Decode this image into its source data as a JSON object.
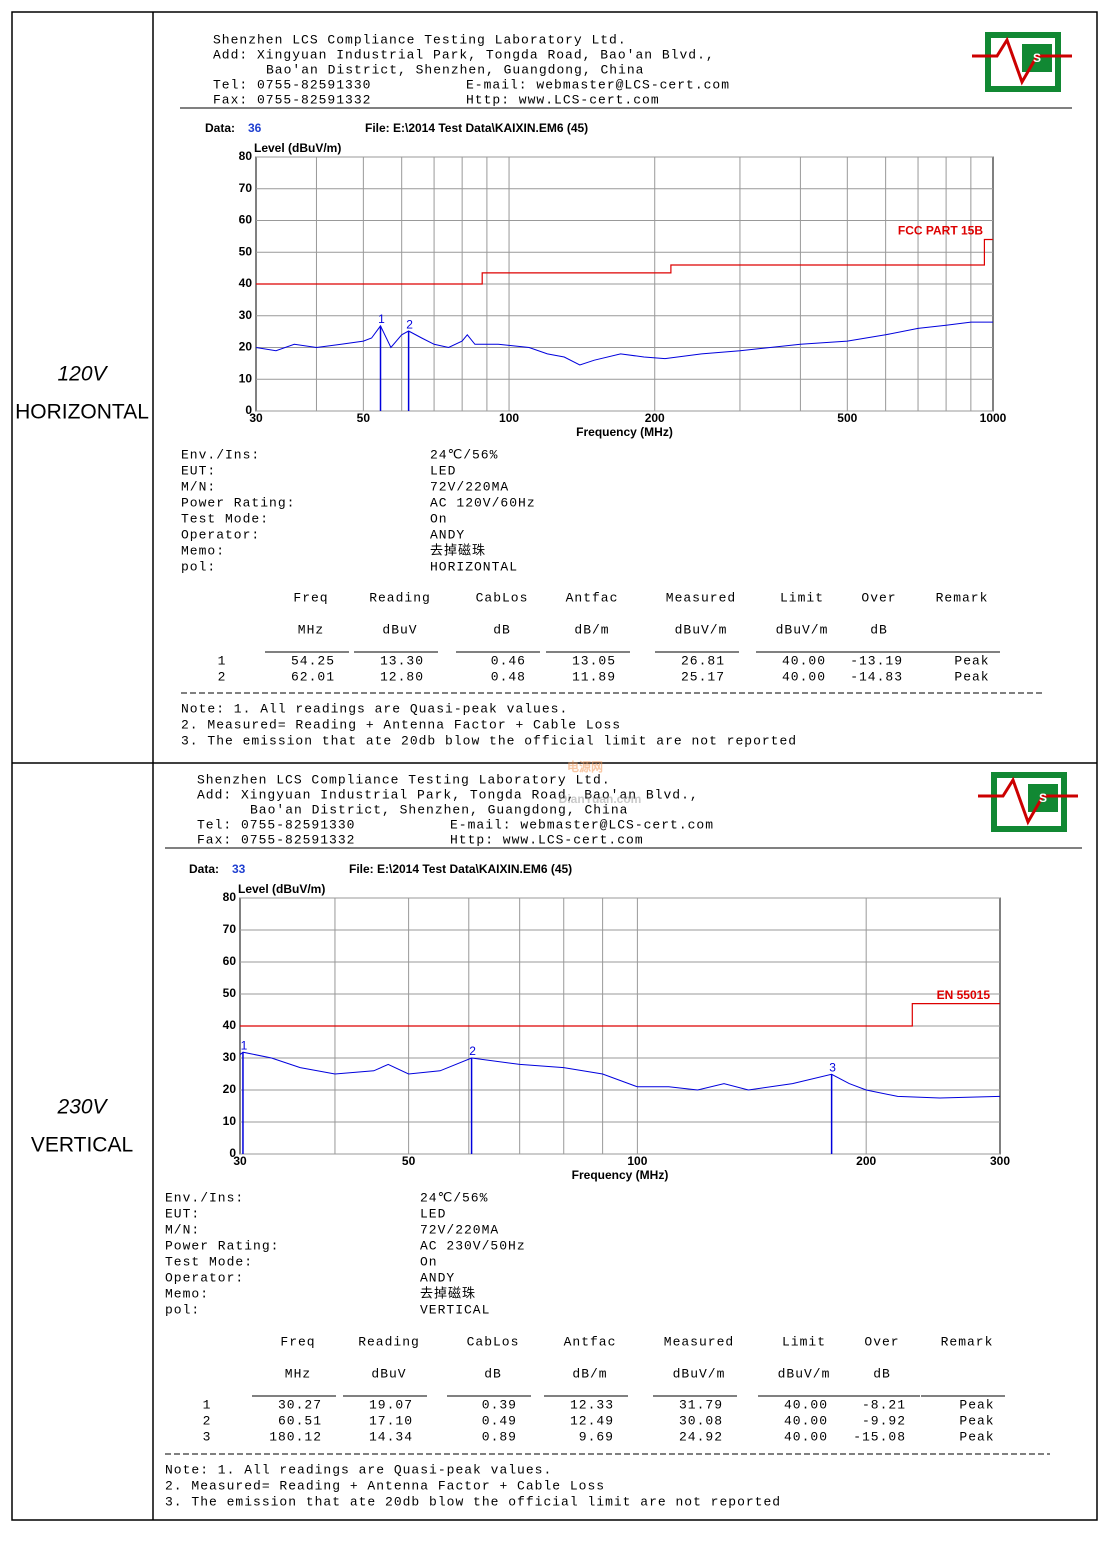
{
  "watermark": [
    "电源网",
    "DianYuan.com"
  ],
  "sections": [
    {
      "label": [
        "120V",
        "HORIZONTAL"
      ],
      "header": {
        "company": "Shenzhen LCS Compliance Testing Laboratory Ltd.",
        "address": [
          "Add: Xingyuan Industrial Park, Tongda Road, Bao'an Blvd.,",
          "Bao'an District, Shenzhen, Guangdong, China"
        ],
        "tel": "Tel: 0755-82591330",
        "email": "E-mail: webmaster@LCS-cert.com",
        "fax": "Fax: 0755-82591332",
        "http": "Http: www.LCS-cert.com"
      },
      "logo": "S",
      "data_label": "Data:",
      "data_no": "36",
      "file": "File: E:\\2014 Test Data\\KAIXIN.EM6  (45)",
      "chart_data": {
        "type": "line",
        "y_label": "Level (dBuV/m)",
        "x_label": "Frequency (MHz)",
        "xscale": "log",
        "xlim": [
          30,
          1000
        ],
        "ylim": [
          0,
          80
        ],
        "yticks": [
          0,
          10,
          20,
          30,
          40,
          50,
          60,
          70,
          80
        ],
        "xticks": [
          30,
          50,
          100,
          200,
          500,
          1000
        ],
        "xgrid": [
          40,
          50,
          60,
          70,
          80,
          90,
          100,
          200,
          300,
          400,
          500,
          600,
          700,
          800,
          900
        ],
        "grid": true,
        "series": [
          {
            "name": "FCC PART 15B",
            "color": "#dd0000",
            "x": [
              30,
              88,
              88,
              216,
              216,
              960,
              960,
              1000
            ],
            "values": [
              40,
              40,
              43.5,
              43.5,
              46,
              46,
              54,
              54
            ]
          },
          {
            "color": "#0000dd",
            "x": [
              30,
              33,
              36,
              40,
              45,
              50,
              52,
              54.25,
              57,
              60,
              62,
              66,
              70,
              75,
              80,
              82,
              85,
              95,
              110,
              120,
              130,
              140,
              150,
              170,
              190,
              210,
              250,
              300,
              400,
              500,
              600,
              700,
              800,
              900,
              1000
            ],
            "values": [
              20,
              19,
              21,
              20,
              21,
              22,
              23,
              26.8,
              20,
              24,
              25.2,
              23,
              21,
              20,
              22,
              24,
              21,
              21,
              20,
              18,
              17,
              14.5,
              16,
              18,
              17,
              16.5,
              18,
              19,
              21,
              22,
              24,
              26,
              27,
              28,
              28
            ]
          }
        ],
        "markers": [
          {
            "label": "1",
            "x": 54.25,
            "value": 26.81
          },
          {
            "label": "2",
            "x": 62.01,
            "value": 25.17
          }
        ]
      },
      "info": [
        [
          "Env./Ins:",
          "24℃/56%"
        ],
        [
          "EUT:",
          "LED"
        ],
        [
          "M/N:",
          "72V/220MA"
        ],
        [
          "Power Rating:",
          "AC 120V/60Hz"
        ],
        [
          "Test Mode:",
          "On"
        ],
        [
          "Operator:",
          "ANDY"
        ],
        [
          "Memo:",
          "去掉磁珠"
        ],
        [
          "pol:",
          "HORIZONTAL"
        ]
      ],
      "table": {
        "columns": [
          "Freq",
          "Reading",
          "CabLos",
          "Antfac",
          "Measured",
          "Limit",
          "Over",
          "Remark"
        ],
        "units": [
          "MHz",
          "dBuV",
          "dB",
          "dB/m",
          "dBuV/m",
          "dBuV/m",
          "dB"
        ],
        "rows": [
          [
            "1",
            "54.25",
            "13.30",
            "0.46",
            "13.05",
            "26.81",
            "40.00",
            "-13.19",
            "Peak"
          ],
          [
            "2",
            "62.01",
            "12.80",
            "0.48",
            "11.89",
            "25.17",
            "40.00",
            "-14.83",
            "Peak"
          ]
        ]
      },
      "notes": [
        "Note: 1. All readings are Quasi-peak values.",
        "2. Measured= Reading + Antenna Factor + Cable Loss",
        "3. The emission that ate 20db blow the official limit are not reported"
      ]
    },
    {
      "label": [
        "230V",
        "VERTICAL"
      ],
      "header": {
        "company": "Shenzhen LCS Compliance Testing Laboratory Ltd.",
        "address": [
          "Add: Xingyuan Industrial Park, Tongda Road, Bao'an Blvd.,",
          "Bao'an District, Shenzhen, Guangdong, China"
        ],
        "tel": "Tel: 0755-82591330",
        "email": "E-mail: webmaster@LCS-cert.com",
        "fax": "Fax: 0755-82591332",
        "http": "Http: www.LCS-cert.com"
      },
      "logo": "S",
      "data_label": "Data:",
      "data_no": "33",
      "file": "File: E:\\2014 Test Data\\KAIXIN.EM6  (45)",
      "chart_data": {
        "type": "line",
        "y_label": "Level (dBuV/m)",
        "x_label": "Frequency (MHz)",
        "xscale": "log",
        "xlim": [
          30,
          300
        ],
        "ylim": [
          0,
          80
        ],
        "yticks": [
          0,
          10,
          20,
          30,
          40,
          50,
          60,
          70,
          80
        ],
        "xticks": [
          30,
          50,
          100,
          200,
          300
        ],
        "xgrid": [
          40,
          50,
          60,
          70,
          80,
          90,
          100,
          200
        ],
        "grid": true,
        "series": [
          {
            "name": "EN 55015",
            "color": "#dd0000",
            "x": [
              30,
              230,
              230,
              300
            ],
            "values": [
              40,
              40,
              47,
              47
            ]
          },
          {
            "color": "#0000dd",
            "x": [
              30,
              30.27,
              33,
              36,
              40,
              45,
              47,
              50,
              55,
              60.51,
              70,
              80,
              90,
              100,
              110,
              120,
              130,
              140,
              160,
              180.12,
              190,
              200,
              220,
              250,
              300
            ],
            "values": [
              31,
              31.8,
              30,
              27,
              25,
              26,
              28,
              25,
              26,
              30,
              28,
              27,
              25,
              21,
              21,
              20,
              22,
              20,
              22,
              24.9,
              22,
              20,
              18,
              17.5,
              18
            ]
          }
        ],
        "markers": [
          {
            "label": "1",
            "x": 30.27,
            "value": 31.79
          },
          {
            "label": "2",
            "x": 60.51,
            "value": 30.08
          },
          {
            "label": "3",
            "x": 180.12,
            "value": 24.92
          }
        ]
      },
      "info": [
        [
          "Env./Ins:",
          "24℃/56%"
        ],
        [
          "EUT:",
          "LED"
        ],
        [
          "M/N:",
          "72V/220MA"
        ],
        [
          "Power Rating:",
          "AC 230V/50Hz"
        ],
        [
          "Test Mode:",
          "On"
        ],
        [
          "Operator:",
          "ANDY"
        ],
        [
          "Memo:",
          "去掉磁珠"
        ],
        [
          "pol:",
          "VERTICAL"
        ]
      ],
      "table": {
        "columns": [
          "Freq",
          "Reading",
          "CabLos",
          "Antfac",
          "Measured",
          "Limit",
          "Over",
          "Remark"
        ],
        "units": [
          "MHz",
          "dBuV",
          "dB",
          "dB/m",
          "dBuV/m",
          "dBuV/m",
          "dB"
        ],
        "rows": [
          [
            "1",
            "30.27",
            "19.07",
            "0.39",
            "12.33",
            "31.79",
            "40.00",
            "-8.21",
            "Peak"
          ],
          [
            "2",
            "60.51",
            "17.10",
            "0.49",
            "12.49",
            "30.08",
            "40.00",
            "-9.92",
            "Peak"
          ],
          [
            "3",
            "180.12",
            "14.34",
            "0.89",
            "9.69",
            "24.92",
            "40.00",
            "-15.08",
            "Peak"
          ]
        ]
      },
      "notes": [
        "Note: 1. All readings are Quasi-peak values.",
        "2. Measured= Reading + Antenna Factor + Cable Loss",
        "3. The emission that ate 20db blow the official limit are not reported"
      ]
    }
  ]
}
